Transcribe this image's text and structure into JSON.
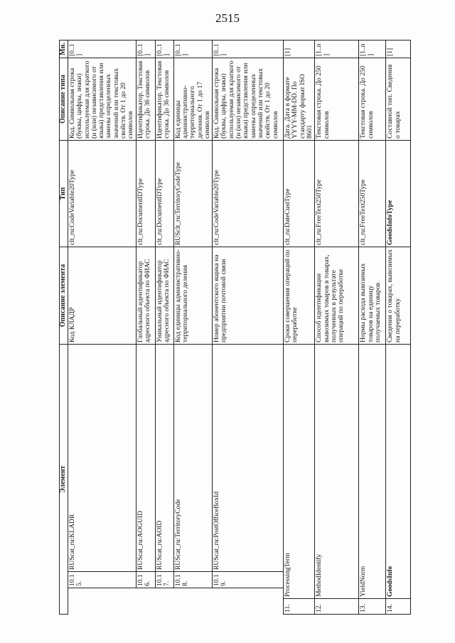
{
  "page_number": "2515",
  "headers": {
    "element": "Элемент",
    "element_desc": "Описание элемента",
    "type": "Тип",
    "type_desc": "Описание типа",
    "multiplicity": "Мн."
  },
  "rows": [
    {
      "num": "10.15.",
      "element": "RUScat_ru:KLADR",
      "element_desc": "Код КЛАДР",
      "type": "clt_ru:CodeVariable20Type",
      "type_desc": "Код. Символьная строка (буквы, цифры, знаки) используемая для краткого (и (или) независимого от языка) представления или замены определенных значений или текстовых свойств. От 1 до 20 символов",
      "mult": "[0..1]",
      "nested": true
    },
    {
      "num": "10.16.",
      "element": "RUScat_ru:AOGUID",
      "element_desc": "Глобальный идентификатор адресного объекта по ФИАС",
      "type": "clt_ru:DocumentIDType",
      "type_desc": "Идентификатор. Текстовая строка. До 36 символов",
      "mult": "[0..1]",
      "nested": true
    },
    {
      "num": "10.17.",
      "element": "RUScat_ru:AOID",
      "element_desc": "Уникальный идентификатор адресного объекта по ФИАС",
      "type": "clt_ru:DocumentIDType",
      "type_desc": "Идентификатор. Текстовая строка. До 36 символов",
      "mult": "[0..1]",
      "nested": true
    },
    {
      "num": "10.18.",
      "element": "RUScat_ru:TerritoryCode",
      "element_desc": "Код единицы административно-территориального деления",
      "type": "RUSclt_ru:TerritoryCodeType",
      "type_desc": "Код единицы административно-территориального деления. От 1 до 17 символов",
      "mult": "[0..1]",
      "nested": true
    },
    {
      "num": "10.19.",
      "element": "RUScat_ru:PostOfficeBoxId",
      "element_desc": "Номер абонентского ящика на предприятии почтовой связи",
      "type": "clt_ru:CodeVariable20Type",
      "type_desc": "Код. Символьная строка (буквы, цифры, знаки) используемая для краткого (и (или) независимого от языка) представления или замены определенных значений или текстовых свойств. От 1 до 20 символов",
      "mult": "[0..1]",
      "nested": true
    },
    {
      "num": "11.",
      "element": "ProcessingTerm",
      "element_desc": "Сроки совершения операций по переработке",
      "type": "clt_ru:DateCustType",
      "type_desc": "Дата. Дата в формате YYYY-MM-DD. По стандарту формат ISO 8601",
      "mult": "[1]",
      "nested": false
    },
    {
      "num": "12.",
      "element": "MethodIdentify",
      "element_desc": "Способ идентификации вывозимых товаров в товарах, полученных в результате операций по переработке",
      "type": "clt_ru:FreeText250Type",
      "type_desc": "Текстовая строка. До 250 символов",
      "mult": "[1..n]",
      "nested": false
    },
    {
      "num": "13.",
      "element": "YieldNorm",
      "element_desc": "Нормы расхода вывозимых товаров на единицу получаемых товаров",
      "type": "clt_ru:FreeText250Type",
      "type_desc": "Текстовая строка. До 250 символов",
      "mult": "[1..n]",
      "nested": false
    },
    {
      "num": "14.",
      "element": "GoodsInfo",
      "element_desc": "Сведения о товарах, вывозимых на переработку",
      "type": "GoodsInfoType",
      "type_desc": "Составной тип. Сведения о товарах",
      "mult": "[1]",
      "nested": false,
      "bold": true
    }
  ]
}
